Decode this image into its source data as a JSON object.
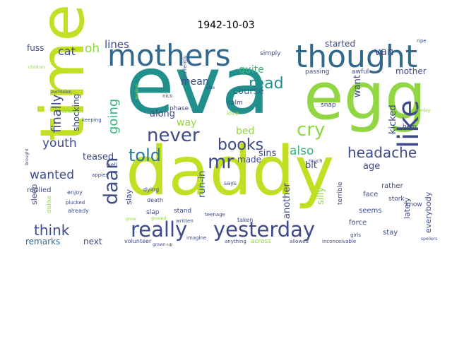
{
  "chart_data": {
    "type": "wordcloud",
    "title": "1942-10-03",
    "background": "#ffffff",
    "palette": "viridis",
    "colors": {
      "dark_purple": "#440154",
      "indigo": "#3e4a89",
      "blue": "#31688e",
      "teal": "#21908d",
      "green": "#35b779",
      "lime": "#90d743",
      "yellow": "#c2df23"
    },
    "words": [
      {
        "text": "eva",
        "weight": 100,
        "color": "#21908d"
      },
      {
        "text": "daddy",
        "weight": 96,
        "color": "#c2df23"
      },
      {
        "text": "egg",
        "weight": 88,
        "color": "#90d743"
      },
      {
        "text": "time",
        "weight": 86,
        "color": "#c2df23"
      },
      {
        "text": "thought",
        "weight": 55,
        "color": "#31688e"
      },
      {
        "text": "mothers",
        "weight": 50,
        "color": "#31688e"
      },
      {
        "text": "like",
        "weight": 44,
        "color": "#3e4a89"
      },
      {
        "text": "really",
        "weight": 32,
        "color": "#3e4a89"
      },
      {
        "text": "yesterday",
        "weight": 32,
        "color": "#3e4a89"
      },
      {
        "text": "daan",
        "weight": 28,
        "color": "#3e4a89"
      },
      {
        "text": "never",
        "weight": 26,
        "color": "#3e4a89"
      },
      {
        "text": "mr",
        "weight": 24,
        "color": "#3e4a89"
      },
      {
        "text": "told",
        "weight": 24,
        "color": "#2a788e"
      },
      {
        "text": "cry",
        "weight": 24,
        "color": "#90d743"
      },
      {
        "text": "read",
        "weight": 22,
        "color": "#21908d"
      },
      {
        "text": "books",
        "weight": 22,
        "color": "#3e4a89"
      },
      {
        "text": "headache",
        "weight": 20,
        "color": "#3e4a89"
      },
      {
        "text": "think",
        "weight": 20,
        "color": "#3e4a89"
      },
      {
        "text": "finally",
        "weight": 18,
        "color": "#3e4a89"
      },
      {
        "text": "going",
        "weight": 18,
        "color": "#35b779"
      },
      {
        "text": "youth",
        "weight": 16,
        "color": "#3e4a89"
      },
      {
        "text": "wanted",
        "weight": 16,
        "color": "#3e4a89"
      },
      {
        "text": "also",
        "weight": 16,
        "color": "#35b779"
      },
      {
        "text": "cat",
        "weight": 14,
        "color": "#3e4a89"
      },
      {
        "text": "oh",
        "weight": 14,
        "color": "#90d743"
      },
      {
        "text": "lines",
        "weight": 13,
        "color": "#3e4a89"
      },
      {
        "text": "fuss",
        "weight": 12,
        "color": "#3e4a89"
      },
      {
        "text": "quite",
        "weight": 12,
        "color": "#35b779"
      },
      {
        "text": "mean",
        "weight": 12,
        "color": "#3e4a89"
      },
      {
        "text": "van",
        "weight": 12,
        "color": "#3e4a89"
      },
      {
        "text": "started",
        "weight": 12,
        "color": "#3e4a89"
      },
      {
        "text": "mother",
        "weight": 11,
        "color": "#3e4a89"
      },
      {
        "text": "course",
        "weight": 12,
        "color": "#31688e"
      },
      {
        "text": "want",
        "weight": 12,
        "color": "#3e4a89"
      },
      {
        "text": "kicked",
        "weight": 12,
        "color": "#3e4a89"
      },
      {
        "text": "along",
        "weight": 12,
        "color": "#3e4a89"
      },
      {
        "text": "way",
        "weight": 12,
        "color": "#90d743"
      },
      {
        "text": "bed",
        "weight": 12,
        "color": "#90d743"
      },
      {
        "text": "sins",
        "weight": 11,
        "color": "#3e4a89"
      },
      {
        "text": "teased",
        "weight": 11,
        "color": "#3e4a89"
      },
      {
        "text": "shocking",
        "weight": 11,
        "color": "#3e4a89"
      },
      {
        "text": "made",
        "weight": 11,
        "color": "#3e4a89"
      },
      {
        "text": "run-in",
        "weight": 11,
        "color": "#31688e"
      },
      {
        "text": "another",
        "weight": 11,
        "color": "#3e4a89"
      },
      {
        "text": "age",
        "weight": 11,
        "color": "#3e4a89"
      },
      {
        "text": "bit",
        "weight": 11,
        "color": "#3e4a89"
      },
      {
        "text": "silly",
        "weight": 11,
        "color": "#90d743"
      },
      {
        "text": "lately",
        "weight": 10,
        "color": "#3e4a89"
      },
      {
        "text": "everybody",
        "weight": 10,
        "color": "#3e4a89"
      },
      {
        "text": "sleep",
        "weight": 10,
        "color": "#3e4a89"
      },
      {
        "text": "slay",
        "weight": 10,
        "color": "#3e4a89"
      },
      {
        "text": "remarks",
        "weight": 10,
        "color": "#31688e"
      },
      {
        "text": "next",
        "weight": 10,
        "color": "#3e4a89"
      },
      {
        "text": "replied",
        "weight": 9,
        "color": "#3e4a89"
      },
      {
        "text": "stay",
        "weight": 8,
        "color": "#3e4a89"
      },
      {
        "text": "face",
        "weight": 8,
        "color": "#3e4a89"
      },
      {
        "text": "seems",
        "weight": 8,
        "color": "#3e4a89"
      },
      {
        "text": "know",
        "weight": 8,
        "color": "#3e4a89"
      },
      {
        "text": "rather",
        "weight": 8,
        "color": "#3e4a89"
      },
      {
        "text": "force",
        "weight": 8,
        "color": "#3e4a89"
      },
      {
        "text": "terrible",
        "weight": 7,
        "color": "#3e4a89"
      },
      {
        "text": "help",
        "weight": 7,
        "color": "#3e4a89"
      },
      {
        "text": "stork",
        "weight": 7,
        "color": "#3e4a89"
      },
      {
        "text": "stand",
        "weight": 7,
        "color": "#3e4a89"
      },
      {
        "text": "taken",
        "weight": 7,
        "color": "#3e4a89"
      },
      {
        "text": "already",
        "weight": 7,
        "color": "#3e4a89"
      },
      {
        "text": "enjoy",
        "weight": 7,
        "color": "#3e4a89"
      },
      {
        "text": "dying",
        "weight": 7,
        "color": "#3e4a89"
      },
      {
        "text": "death",
        "weight": 6,
        "color": "#3e4a89"
      },
      {
        "text": "slap",
        "weight": 6,
        "color": "#3e4a89"
      },
      {
        "text": "well",
        "weight": 6,
        "color": "#3e4a89"
      },
      {
        "text": "across",
        "weight": 7,
        "color": "#90d743"
      },
      {
        "text": "volunteer",
        "weight": 6,
        "color": "#3e4a89"
      },
      {
        "text": "passing",
        "weight": 7,
        "color": "#3e4a89"
      },
      {
        "text": "awful",
        "weight": 7,
        "color": "#3e4a89"
      },
      {
        "text": "phase",
        "weight": 7,
        "color": "#3e4a89"
      },
      {
        "text": "calm",
        "weight": 7,
        "color": "#3e4a89"
      },
      {
        "text": "snap",
        "weight": 7,
        "color": "#3e4a89"
      },
      {
        "text": "simply",
        "weight": 6,
        "color": "#3e4a89"
      },
      {
        "text": "says",
        "weight": 6,
        "color": "#3e4a89"
      },
      {
        "text": "imagine",
        "weight": 6,
        "color": "#3e4a89"
      },
      {
        "text": "dislike",
        "weight": 6,
        "color": "#90d743"
      },
      {
        "text": "plucked",
        "weight": 5,
        "color": "#3e4a89"
      },
      {
        "text": "apples",
        "weight": 5,
        "color": "#3e4a89"
      },
      {
        "text": "keeping",
        "weight": 5,
        "color": "#3e4a89"
      },
      {
        "text": "love",
        "weight": 6,
        "color": "#90d743"
      },
      {
        "text": "nico",
        "weight": 5,
        "color": "#3e4a89"
      },
      {
        "text": "written",
        "weight": 5,
        "color": "#3e4a89"
      },
      {
        "text": "girls",
        "weight": 5,
        "color": "#3e4a89"
      },
      {
        "text": "ripe",
        "weight": 5,
        "color": "#3e4a89"
      },
      {
        "text": "much",
        "weight": 5,
        "color": "#3e4a89"
      },
      {
        "text": "currently",
        "weight": 5,
        "color": "#3e4a89"
      },
      {
        "text": "teenage",
        "weight": 5,
        "color": "#3e4a89"
      },
      {
        "text": "anything",
        "weight": 5,
        "color": "#3e4a89"
      },
      {
        "text": "allowed",
        "weight": 5,
        "color": "#3e4a89"
      },
      {
        "text": "inconceivable",
        "weight": 5,
        "color": "#3e4a89"
      },
      {
        "text": "difference",
        "weight": 5,
        "color": "#90d743"
      },
      {
        "text": "feeling",
        "weight": 5,
        "color": "#90d743"
      },
      {
        "text": "children",
        "weight": 5,
        "color": "#90d743"
      },
      {
        "text": "zuchtelen",
        "weight": 5,
        "color": "#3e4a89"
      },
      {
        "text": "brought",
        "weight": 5,
        "color": "#3e4a89"
      },
      {
        "text": "grown-up",
        "weight": 5,
        "color": "#3e4a89"
      },
      {
        "text": "ground",
        "weight": 5,
        "color": "#90d743"
      },
      {
        "text": "grow",
        "weight": 5,
        "color": "#90d743"
      },
      {
        "text": "else",
        "weight": 5,
        "color": "#3e4a89"
      },
      {
        "text": "spoilers",
        "weight": 5,
        "color": "#3e4a89"
      },
      {
        "text": "someday",
        "weight": 5,
        "color": "#90d743"
      }
    ]
  }
}
